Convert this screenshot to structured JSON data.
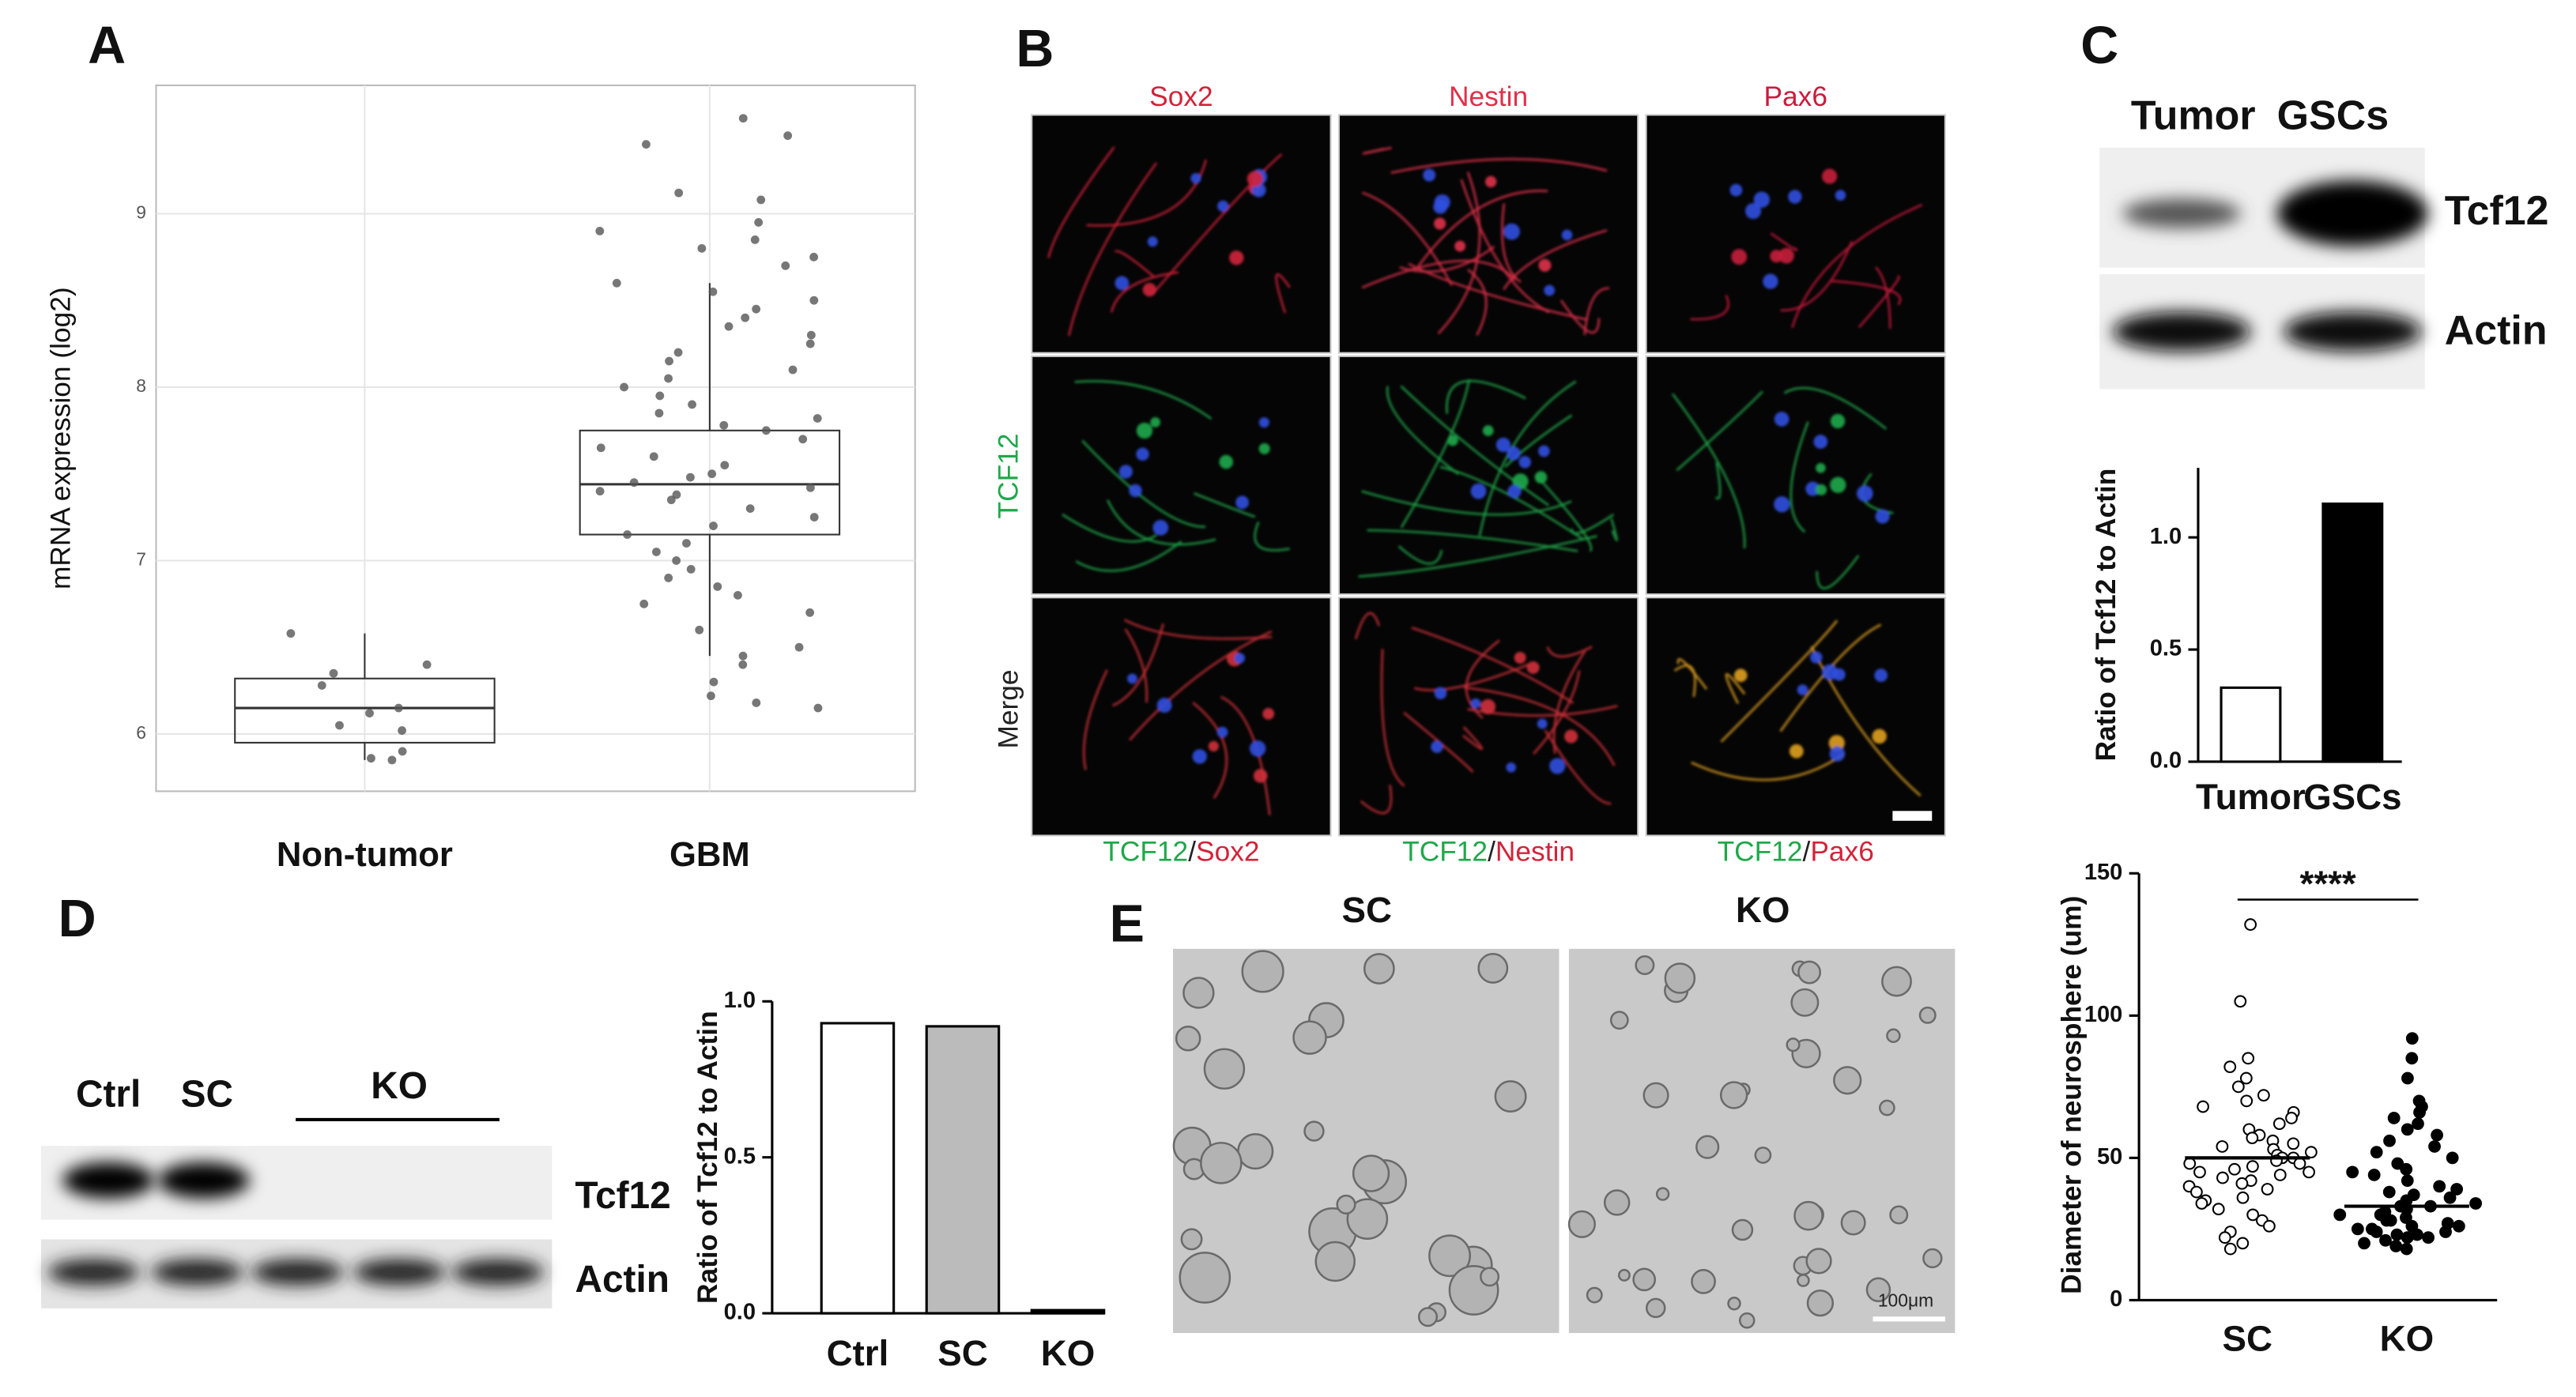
{
  "panels": {
    "labels": [
      "A",
      "B",
      "C",
      "D",
      "E"
    ],
    "B": {
      "columns": [
        "Sox2",
        "Nestin",
        "Pax6"
      ],
      "rows": [
        "TCF12",
        "Merge"
      ],
      "separator": "/",
      "marker": "TCF12"
    },
    "C": {
      "lanes": [
        "Tumor",
        "GSCs"
      ],
      "bands": [
        "Tcf12",
        "Actin"
      ]
    },
    "D": {
      "lanes": [
        "Ctrl",
        "SC",
        "KO"
      ],
      "bands": [
        "Tcf12",
        "Actin"
      ]
    },
    "E": {
      "titles": [
        "SC",
        "KO"
      ],
      "scale_bar": "100μm"
    }
  },
  "chart_data": [
    {
      "type": "box",
      "y_label": "mRNA expression (log2)",
      "categories": [
        "Non-tumor",
        "GBM"
      ],
      "boxes": [
        {
          "min": 5.85,
          "q1": 5.95,
          "median": 6.15,
          "q3": 6.32,
          "max": 6.58
        },
        {
          "min": 6.45,
          "q1": 7.15,
          "median": 7.44,
          "q3": 7.75,
          "max": 8.6
        }
      ],
      "points": [
        [
          6.58,
          6.4,
          6.35,
          6.28,
          6.15,
          6.12,
          6.05,
          6.02,
          5.9,
          5.86,
          5.85
        ],
        [
          9.55,
          9.45,
          9.4,
          9.12,
          9.08,
          8.95,
          8.9,
          8.85,
          8.8,
          8.75,
          8.7,
          8.6,
          8.55,
          8.5,
          8.45,
          8.4,
          8.35,
          8.3,
          8.25,
          8.2,
          8.15,
          8.1,
          8.05,
          8.0,
          7.95,
          7.9,
          7.85,
          7.82,
          7.78,
          7.75,
          7.7,
          7.65,
          7.6,
          7.55,
          7.5,
          7.48,
          7.45,
          7.42,
          7.4,
          7.38,
          7.35,
          7.3,
          7.25,
          7.2,
          7.15,
          7.1,
          7.05,
          7.0,
          6.95,
          6.9,
          6.85,
          6.8,
          6.75,
          6.7,
          6.6,
          6.5,
          6.45,
          6.4,
          6.3,
          6.22,
          6.18,
          6.15
        ]
      ],
      "color": "#555555",
      "ylim": [
        5.67,
        9.74
      ],
      "yticks": [
        6,
        7,
        8,
        9
      ],
      "grid": true
    },
    {
      "type": "bar",
      "y_label": "Ratio of Tcf12 to Actin",
      "categories": [
        "Tumor",
        "GSCs"
      ],
      "values": [
        0.33,
        1.15
      ],
      "colors": [
        "#ffffff",
        "#000000"
      ],
      "ylim": [
        0,
        1.31
      ],
      "yticks": [
        {
          "value": 0,
          "label": "0.0"
        },
        {
          "value": 0.5,
          "label": "0.5"
        },
        {
          "value": 1,
          "label": "1.0"
        }
      ]
    },
    {
      "type": "bar",
      "y_label": "Ratio of Tcf12 to Actin",
      "categories": [
        "Ctrl",
        "SC",
        "KO"
      ],
      "values": [
        0.93,
        0.92,
        0.01
      ],
      "colors": [
        "#ffffff",
        "#bbbbbb",
        "#000000"
      ],
      "ylim": [
        0,
        1.0
      ],
      "yticks": [
        {
          "value": 0,
          "label": "0.0"
        },
        {
          "value": 0.5,
          "label": "0.5"
        },
        {
          "value": 1,
          "label": "1.0"
        }
      ]
    },
    {
      "type": "dot",
      "y_label": "Diameter of neurosphere (um)",
      "categories": [
        "SC",
        "KO"
      ],
      "points": [
        [
          132,
          105,
          85,
          82,
          78,
          75,
          72,
          70,
          68,
          66,
          64,
          62,
          60,
          58,
          57,
          56,
          55,
          54,
          53,
          52,
          51,
          50,
          50,
          49,
          48,
          48,
          47,
          46,
          45,
          45,
          44,
          43,
          42,
          41,
          40,
          39,
          38,
          36,
          35,
          34,
          32,
          30,
          28,
          26,
          24,
          22,
          20,
          18
        ],
        [
          92,
          85,
          78,
          70,
          68,
          66,
          64,
          62,
          60,
          58,
          56,
          54,
          52,
          50,
          48,
          46,
          45,
          44,
          42,
          40,
          39,
          38,
          37,
          36,
          35,
          34,
          33,
          33,
          32,
          31,
          30,
          30,
          29,
          28,
          28,
          27,
          26,
          26,
          25,
          25,
          24,
          24,
          23,
          23,
          22,
          22,
          21,
          20,
          19,
          18
        ]
      ],
      "colors": [
        "#ffffff",
        "#000000"
      ],
      "medians": [
        50,
        33
      ],
      "annotation": "****",
      "ylim": [
        0,
        150
      ],
      "yticks": [
        0,
        50,
        100,
        150
      ]
    }
  ]
}
